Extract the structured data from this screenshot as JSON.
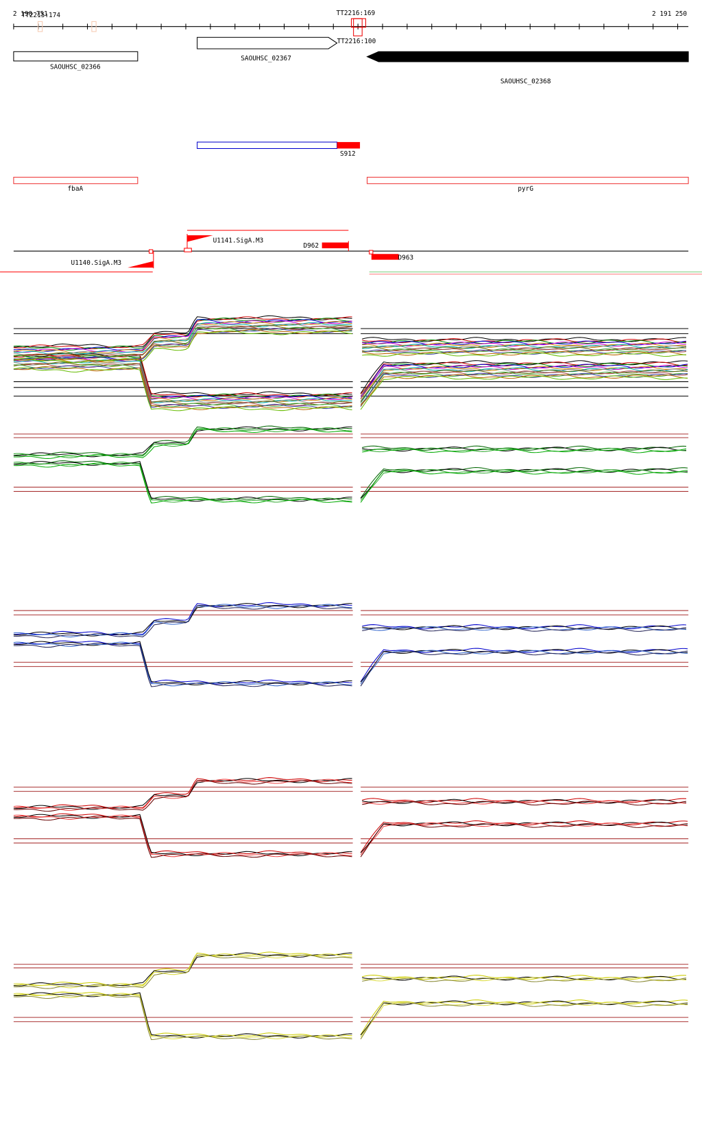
{
  "ruler": {
    "start": "2 190 751",
    "end": "2 191 250",
    "markers": [
      "TT2215:174",
      "TT2216:169",
      "TT2216:100"
    ]
  },
  "genes": [
    "SAOUHSC_02366",
    "SAOUHSC_02367",
    "SAOUHSC_02368"
  ],
  "segments": [
    "S912"
  ],
  "operons": [
    "fbaA",
    "pyrG"
  ],
  "features": [
    "U1141.SigA.M3",
    "D962",
    "U1140.SigA.M3",
    "D963"
  ]
}
